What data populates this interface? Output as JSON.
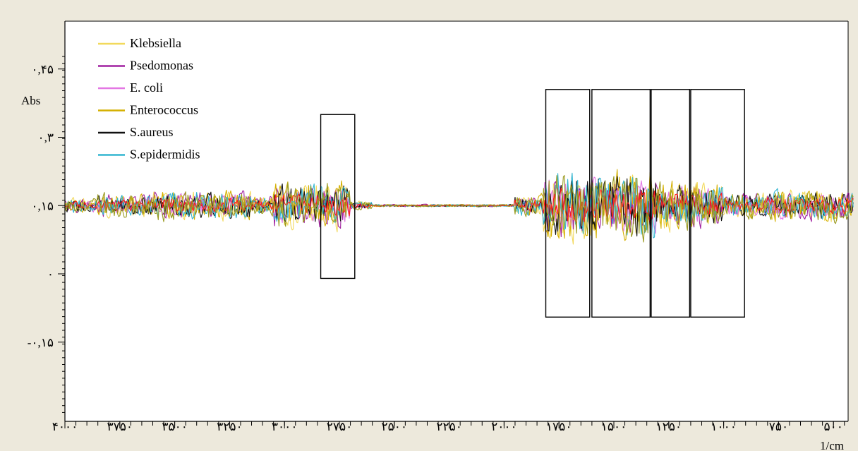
{
  "chart_data": {
    "type": "line",
    "ylabel": "Abs",
    "xlabel": "1/cm",
    "xlim": [
      4000,
      400
    ],
    "ylim": [
      -0.3,
      0.55
    ],
    "x_ticks": [
      {
        "value": 4000,
        "label": "۴۰۰۰"
      },
      {
        "value": 3750,
        "label": "۳۷۵۰"
      },
      {
        "value": 3500,
        "label": "۳۵۰۰"
      },
      {
        "value": 3250,
        "label": "۳۲۵۰"
      },
      {
        "value": 3000,
        "label": "۳۰۰۰"
      },
      {
        "value": 2750,
        "label": "۲۷۵۰"
      },
      {
        "value": 2500,
        "label": "۲۵۰۰"
      },
      {
        "value": 2250,
        "label": "۲۲۵۰"
      },
      {
        "value": 2000,
        "label": "۲۰۰۰"
      },
      {
        "value": 1750,
        "label": "۱۷۵۰"
      },
      {
        "value": 1500,
        "label": "۱۵۰۰"
      },
      {
        "value": 1250,
        "label": "۱۲۵۰"
      },
      {
        "value": 1000,
        "label": "۱۰۰۰"
      },
      {
        "value": 750,
        "label": "۷۵۰"
      },
      {
        "value": 500,
        "label": "۵۰۰"
      }
    ],
    "y_ticks": [
      {
        "value": 0.45,
        "label": "۰,۴۵"
      },
      {
        "value": 0.3,
        "label": "۰,۳"
      },
      {
        "value": 0.15,
        "label": "۰,۱۵"
      },
      {
        "value": 0,
        "label": "۰"
      },
      {
        "value": -0.15,
        "label": "-۰,۱۵"
      }
    ],
    "baseline": 0.15,
    "series": [
      {
        "name": "Klebsiella",
        "color": "#f2d95c",
        "amplitude": 0.06
      },
      {
        "name": "Psedomonas",
        "color": "#a020a0",
        "amplitude": 0.055
      },
      {
        "name": "E. coli",
        "color": "#e377e3",
        "amplitude": 0.045
      },
      {
        "name": "Enterococcus",
        "color": "#d4b000",
        "amplitude": 0.06
      },
      {
        "name": "S.aureus",
        "color": "#111111",
        "amplitude": 0.05
      },
      {
        "name": "S.epidermidis",
        "color": "#33b5d0",
        "amplitude": 0.055
      }
    ],
    "extra_series": [
      {
        "color": "#ff1a1a",
        "amplitude": 0.03
      },
      {
        "color": "#9a9a20",
        "amplitude": 0.06
      }
    ],
    "region_boxes": [
      {
        "x_from": 2835,
        "x_to": 2680,
        "y_top": 0.35,
        "y_bottom": -0.01
      },
      {
        "x_from": 1810,
        "x_to": 1610,
        "y_top": 0.405,
        "y_bottom": -0.095
      },
      {
        "x_from": 1600,
        "x_to": 1335,
        "y_top": 0.405,
        "y_bottom": -0.095
      },
      {
        "x_from": 1330,
        "x_to": 1155,
        "y_top": 0.405,
        "y_bottom": -0.095
      },
      {
        "x_from": 1150,
        "x_to": 905,
        "y_top": 0.405,
        "y_bottom": -0.095
      }
    ]
  }
}
